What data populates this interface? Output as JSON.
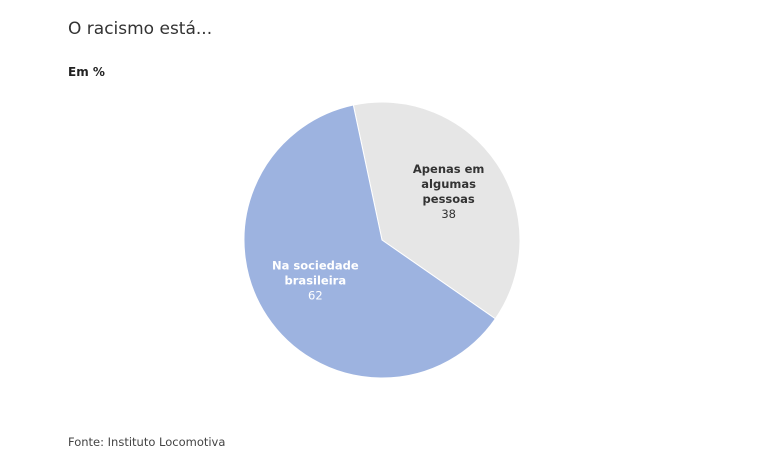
{
  "title": "O racismo está...",
  "subtitle": "Em %",
  "source": "Fonte: Instituto Locomotiva",
  "chart_data": {
    "type": "pie",
    "unit": "%",
    "slices": [
      {
        "label_lines": [
          "Apenas em",
          "algumas",
          "pessoas"
        ],
        "value": 38,
        "color": "#e6e6e6",
        "label_color": "#333333"
      },
      {
        "label_lines": [
          "Na sociedade",
          "brasileira"
        ],
        "value": 62,
        "color": "#9db3e0",
        "label_color": "#ffffff"
      }
    ]
  }
}
